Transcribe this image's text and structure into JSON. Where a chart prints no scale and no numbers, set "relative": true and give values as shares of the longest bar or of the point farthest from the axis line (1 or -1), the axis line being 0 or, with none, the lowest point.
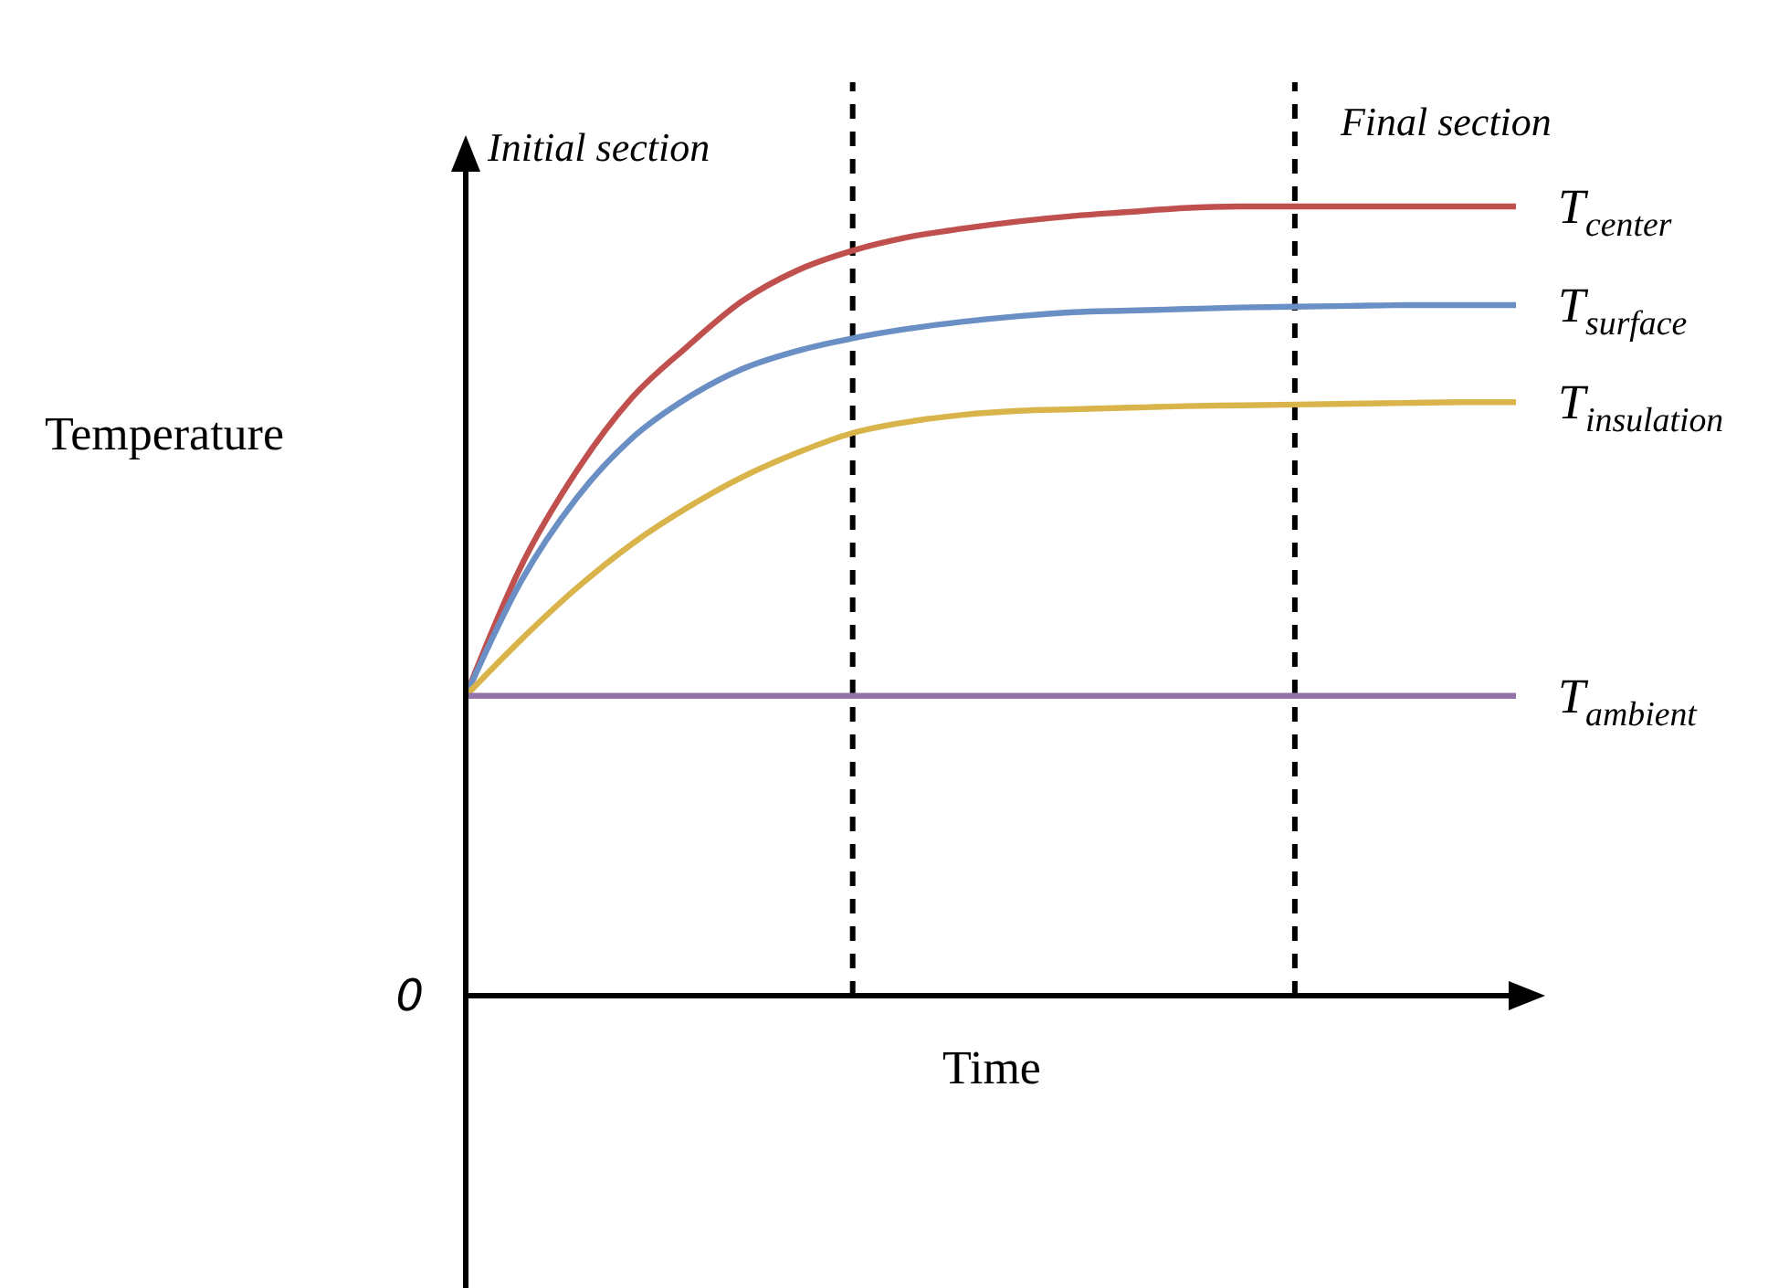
{
  "chart_data": {
    "type": "line",
    "relative": true,
    "xlabel": "Time",
    "ylabel": "Temperature",
    "legend": false,
    "line_style": "solid",
    "marker": "none",
    "categories": [
      null,
      null,
      null,
      null,
      null,
      null,
      null,
      null,
      null,
      null,
      null,
      null,
      null,
      null,
      null,
      null,
      null,
      null,
      null,
      null
    ],
    "series": [
      {
        "name": "T$_{center}$",
        "color": "#c0504d",
        "values": [
          0.38,
          0.544,
          0.664,
          0.757,
          0.822,
          0.88,
          0.919,
          0.944,
          0.961,
          0.972,
          0.981,
          0.988,
          0.993,
          0.998,
          1,
          1,
          1,
          1,
          1,
          1
        ]
      },
      {
        "name": "T$_{surface}$",
        "color": "#6a8fc4",
        "values": [
          0.38,
          0.525,
          0.63,
          0.706,
          0.757,
          0.794,
          0.817,
          0.833,
          0.845,
          0.854,
          0.861,
          0.866,
          0.868,
          0.87,
          0.872,
          0.873,
          0.874,
          0.875,
          0.875,
          0.875
        ]
      },
      {
        "name": "T$_{insulation}$",
        "color": "#d9b44a",
        "values": [
          0.38,
          0.451,
          0.516,
          0.572,
          0.618,
          0.657,
          0.688,
          0.713,
          0.727,
          0.736,
          0.741,
          0.743,
          0.745,
          0.747,
          0.748,
          0.749,
          0.75,
          0.751,
          0.752,
          0.752
        ]
      },
      {
        "name": "T$_{ambient}$",
        "color": "#9474a8",
        "values": [
          0.38,
          0.38,
          0.38,
          0.38,
          0.38,
          0.38,
          0.38,
          0.38,
          0.38,
          0.38,
          0.38,
          0.38,
          0.38,
          0.38,
          0.38,
          0.38,
          0.38,
          0.38,
          0.38,
          0.38
        ]
      }
    ],
    "annotations": [
      "Initial section",
      "Final section",
      "0"
    ]
  }
}
